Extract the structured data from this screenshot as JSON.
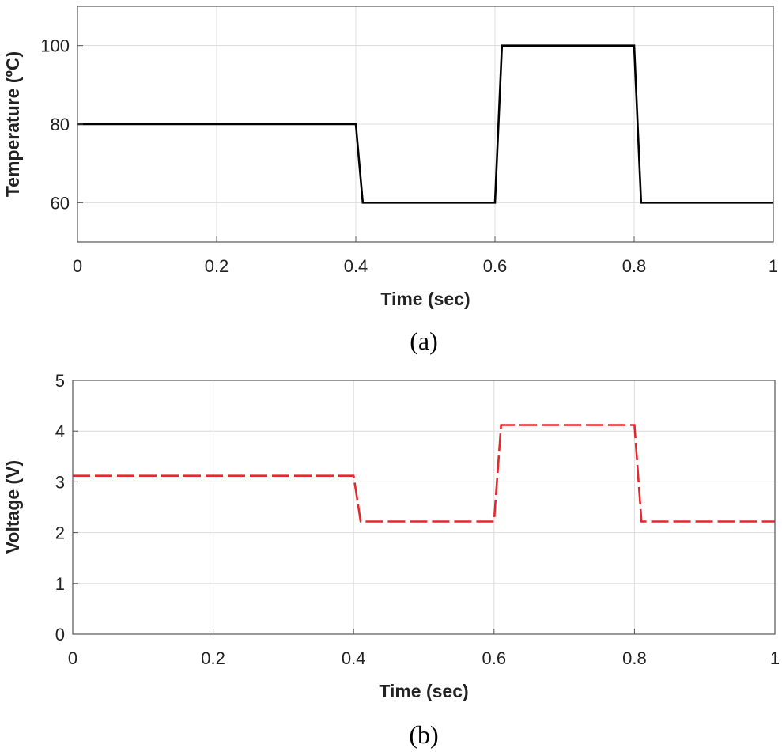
{
  "chart_data": [
    {
      "id": "a",
      "type": "line",
      "caption": "(a)",
      "xlabel": "Time (sec)",
      "ylabel": "Temperature (ºC)",
      "xlim": [
        0,
        1
      ],
      "ylim": [
        50,
        110
      ],
      "xticks": [
        0,
        0.2,
        0.4,
        0.6,
        0.8,
        1
      ],
      "xtick_labels": [
        "0",
        "0.2",
        "0.4",
        "0.6",
        "0.8",
        "1"
      ],
      "yticks": [
        60,
        80,
        100
      ],
      "ytick_labels": [
        "60",
        "80",
        "100"
      ],
      "grid": true,
      "series": [
        {
          "color": "#000000",
          "style": "solid",
          "x": [
            0,
            0.4,
            0.41,
            0.6,
            0.61,
            0.8,
            0.81,
            1
          ],
          "y": [
            80,
            80,
            60,
            60,
            100,
            100,
            60,
            60
          ]
        }
      ]
    },
    {
      "id": "b",
      "type": "line",
      "caption": "(b)",
      "xlabel": "Time (sec)",
      "ylabel": "Voltage (V)",
      "xlim": [
        0,
        1
      ],
      "ylim": [
        0,
        5
      ],
      "xticks": [
        0,
        0.2,
        0.4,
        0.6,
        0.8,
        1
      ],
      "xtick_labels": [
        "0",
        "0.2",
        "0.4",
        "0.6",
        "0.8",
        "1"
      ],
      "yticks": [
        0,
        1,
        2,
        3,
        4,
        5
      ],
      "ytick_labels": [
        "0",
        "1",
        "2",
        "3",
        "4",
        "5"
      ],
      "grid": true,
      "series": [
        {
          "color": "#e8262b",
          "style": "dashed",
          "x": [
            0,
            0.4,
            0.41,
            0.6,
            0.61,
            0.8,
            0.81,
            1
          ],
          "y": [
            3.12,
            3.12,
            2.22,
            2.22,
            4.12,
            4.12,
            2.22,
            2.22
          ]
        }
      ]
    }
  ]
}
